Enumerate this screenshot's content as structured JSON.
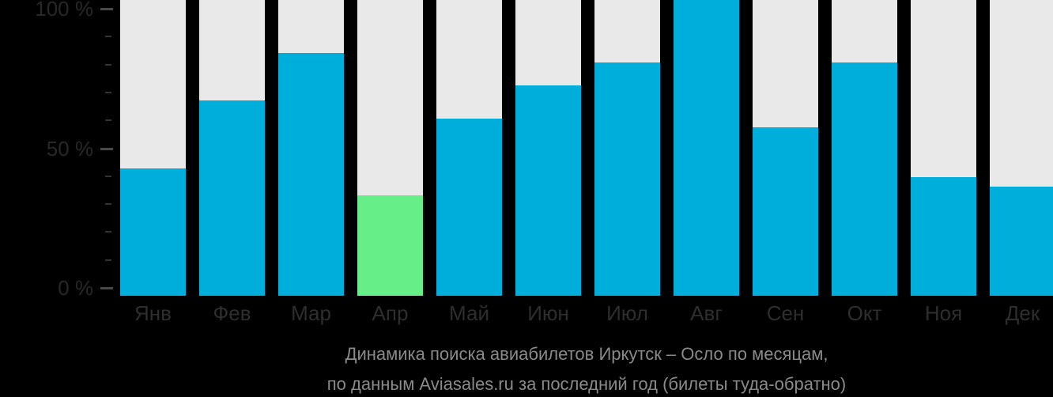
{
  "page": {
    "background": "#000000"
  },
  "chart_data": {
    "type": "bar",
    "title": "Динамика поиска авиабилетов Иркутск – Осло по месяцам,",
    "subtitle": "по данным Aviasales.ru за последний год (билеты туда-обратно)",
    "categories": [
      "Янв",
      "Фев",
      "Мар",
      "Апр",
      "Май",
      "Июн",
      "Июл",
      "Авг",
      "Сен",
      "Окт",
      "Ноя",
      "Дек"
    ],
    "values": [
      43,
      66,
      82,
      34,
      60,
      71,
      79,
      100,
      57,
      79,
      40,
      37
    ],
    "value_unit": "%",
    "highlight_index": 3,
    "highlight_category": "Апр",
    "ylim": [
      0,
      100
    ],
    "yticks_major": [
      {
        "value": 100,
        "label": "100 %"
      },
      {
        "value": 50,
        "label": "50 %"
      },
      {
        "value": 0,
        "label": "0 %"
      }
    ],
    "yticks_minor": [
      90,
      80,
      70,
      60,
      40,
      30,
      20,
      10
    ],
    "grid": false,
    "legend": false,
    "colors": {
      "bar": "#00AEDB",
      "bar_highlight": "#66EE88",
      "bar_track": "#E9E9E9",
      "axis_label": "#282828",
      "month_label": "#2E2E2E",
      "tick_major": "#4A4A4A",
      "tick_minor": "#333333",
      "caption": "#8A8A8A",
      "background": "#000000"
    }
  }
}
